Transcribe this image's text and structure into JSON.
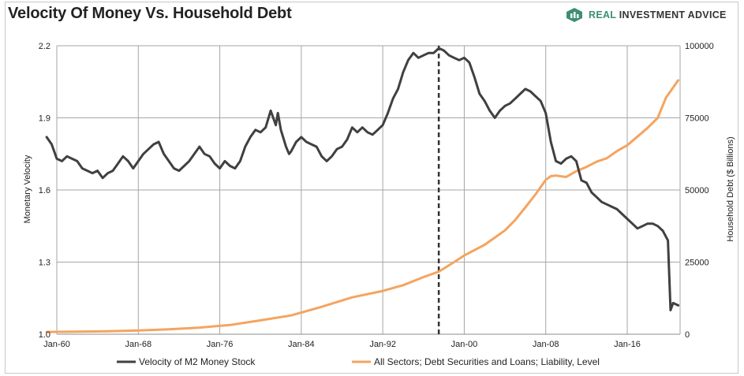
{
  "header": {
    "title": "Velocity Of Money Vs. Household Debt",
    "brand_part1": "REAL ",
    "brand_part2": "INVESTMENT ADVICE",
    "brand_icon": "brand-logo-icon",
    "brand_color": "#3d8f6f"
  },
  "chart_data": {
    "type": "line",
    "xlabel": "",
    "ylabel_left": "Monetary Velocity",
    "ylabel_right": "Household Debt ($ Billions)",
    "x_range": [
      1959.0,
      2019.3
    ],
    "x_ticks": [
      {
        "label": "Jan-60",
        "year": 1960
      },
      {
        "label": "Jan-68",
        "year": 1968
      },
      {
        "label": "Jan-76",
        "year": 1976
      },
      {
        "label": "Jan-84",
        "year": 1984
      },
      {
        "label": "Jan-92",
        "year": 1992
      },
      {
        "label": "Jan-00",
        "year": 2000
      },
      {
        "label": "Jan-08",
        "year": 2008
      },
      {
        "label": "Jan-16",
        "year": 2016
      }
    ],
    "ylim_left": [
      1.0,
      2.2
    ],
    "ylim_right": [
      0,
      100000
    ],
    "yticks_left": [
      "1.0",
      "1.3",
      "1.6",
      "1.9",
      "2.2"
    ],
    "yticks_right": [
      "0",
      "25000",
      "50000",
      "75000",
      "100000"
    ],
    "grid": true,
    "legend_position": "bottom",
    "vline_year": 1997.5,
    "series": [
      {
        "name": "Velocity of M2 Money Stock",
        "axis": "left",
        "color": "#404040",
        "points": [
          [
            1959.0,
            1.82
          ],
          [
            1959.5,
            1.79
          ],
          [
            1960.0,
            1.73
          ],
          [
            1960.5,
            1.72
          ],
          [
            1961.0,
            1.74
          ],
          [
            1961.5,
            1.73
          ],
          [
            1962.0,
            1.72
          ],
          [
            1962.5,
            1.69
          ],
          [
            1963.0,
            1.68
          ],
          [
            1963.5,
            1.67
          ],
          [
            1964.0,
            1.68
          ],
          [
            1964.5,
            1.65
          ],
          [
            1965.0,
            1.67
          ],
          [
            1965.5,
            1.68
          ],
          [
            1966.0,
            1.71
          ],
          [
            1966.5,
            1.74
          ],
          [
            1967.0,
            1.72
          ],
          [
            1967.5,
            1.69
          ],
          [
            1968.0,
            1.72
          ],
          [
            1968.5,
            1.75
          ],
          [
            1969.0,
            1.77
          ],
          [
            1969.5,
            1.79
          ],
          [
            1970.0,
            1.8
          ],
          [
            1970.5,
            1.75
          ],
          [
            1971.0,
            1.72
          ],
          [
            1971.5,
            1.69
          ],
          [
            1972.0,
            1.68
          ],
          [
            1972.5,
            1.7
          ],
          [
            1973.0,
            1.72
          ],
          [
            1973.5,
            1.75
          ],
          [
            1974.0,
            1.78
          ],
          [
            1974.5,
            1.75
          ],
          [
            1975.0,
            1.74
          ],
          [
            1975.5,
            1.71
          ],
          [
            1976.0,
            1.69
          ],
          [
            1976.5,
            1.72
          ],
          [
            1977.0,
            1.7
          ],
          [
            1977.5,
            1.69
          ],
          [
            1978.0,
            1.72
          ],
          [
            1978.5,
            1.78
          ],
          [
            1979.0,
            1.82
          ],
          [
            1979.5,
            1.85
          ],
          [
            1980.0,
            1.84
          ],
          [
            1980.5,
            1.86
          ],
          [
            1981.0,
            1.93
          ],
          [
            1981.5,
            1.87
          ],
          [
            1981.7,
            1.92
          ],
          [
            1982.0,
            1.85
          ],
          [
            1982.5,
            1.78
          ],
          [
            1982.8,
            1.75
          ],
          [
            1983.0,
            1.76
          ],
          [
            1983.5,
            1.8
          ],
          [
            1984.0,
            1.82
          ],
          [
            1984.5,
            1.8
          ],
          [
            1985.0,
            1.79
          ],
          [
            1985.5,
            1.78
          ],
          [
            1986.0,
            1.74
          ],
          [
            1986.5,
            1.72
          ],
          [
            1987.0,
            1.74
          ],
          [
            1987.5,
            1.77
          ],
          [
            1988.0,
            1.78
          ],
          [
            1988.5,
            1.81
          ],
          [
            1989.0,
            1.86
          ],
          [
            1989.5,
            1.84
          ],
          [
            1990.0,
            1.86
          ],
          [
            1990.5,
            1.84
          ],
          [
            1991.0,
            1.83
          ],
          [
            1991.5,
            1.85
          ],
          [
            1992.0,
            1.87
          ],
          [
            1992.5,
            1.92
          ],
          [
            1993.0,
            1.98
          ],
          [
            1993.5,
            2.02
          ],
          [
            1994.0,
            2.09
          ],
          [
            1994.5,
            2.14
          ],
          [
            1995.0,
            2.17
          ],
          [
            1995.5,
            2.15
          ],
          [
            1996.0,
            2.16
          ],
          [
            1996.5,
            2.17
          ],
          [
            1997.0,
            2.17
          ],
          [
            1997.5,
            2.19
          ],
          [
            1998.0,
            2.18
          ],
          [
            1998.5,
            2.16
          ],
          [
            1999.0,
            2.15
          ],
          [
            1999.5,
            2.14
          ],
          [
            2000.0,
            2.15
          ],
          [
            2000.5,
            2.13
          ],
          [
            2001.0,
            2.07
          ],
          [
            2001.5,
            2.0
          ],
          [
            2002.0,
            1.97
          ],
          [
            2002.5,
            1.93
          ],
          [
            2003.0,
            1.9
          ],
          [
            2003.5,
            1.93
          ],
          [
            2004.0,
            1.95
          ],
          [
            2004.5,
            1.96
          ],
          [
            2005.0,
            1.98
          ],
          [
            2005.5,
            2.0
          ],
          [
            2006.0,
            2.02
          ],
          [
            2006.5,
            2.01
          ],
          [
            2007.0,
            1.99
          ],
          [
            2007.5,
            1.97
          ],
          [
            2008.0,
            1.92
          ],
          [
            2008.5,
            1.8
          ],
          [
            2009.0,
            1.72
          ],
          [
            2009.5,
            1.71
          ],
          [
            2010.0,
            1.73
          ],
          [
            2010.5,
            1.74
          ],
          [
            2011.0,
            1.72
          ],
          [
            2011.5,
            1.64
          ],
          [
            2012.0,
            1.63
          ],
          [
            2012.5,
            1.59
          ],
          [
            2013.0,
            1.57
          ],
          [
            2013.5,
            1.55
          ],
          [
            2014.0,
            1.54
          ],
          [
            2014.5,
            1.53
          ],
          [
            2015.0,
            1.52
          ],
          [
            2015.5,
            1.5
          ],
          [
            2016.0,
            1.48
          ],
          [
            2016.5,
            1.46
          ],
          [
            2017.0,
            1.44
          ],
          [
            2017.5,
            1.45
          ],
          [
            2018.0,
            1.46
          ],
          [
            2018.5,
            1.46
          ],
          [
            2019.0,
            1.45
          ],
          [
            2019.5,
            1.43
          ],
          [
            2020.0,
            1.39
          ],
          [
            2020.25,
            1.1
          ],
          [
            2020.5,
            1.13
          ],
          [
            2021.0,
            1.12
          ]
        ]
      },
      {
        "name": "All Sectors; Debt Securities and Loans; Liability, Level",
        "axis": "right",
        "color": "#f4a460",
        "points": [
          [
            1959.0,
            800
          ],
          [
            1962,
            900
          ],
          [
            1965,
            1000
          ],
          [
            1968,
            1300
          ],
          [
            1971,
            1700
          ],
          [
            1974,
            2300
          ],
          [
            1977,
            3200
          ],
          [
            1980,
            4800
          ],
          [
            1983,
            6500
          ],
          [
            1986,
            9500
          ],
          [
            1989,
            12800
          ],
          [
            1992,
            15000
          ],
          [
            1994,
            17000
          ],
          [
            1996,
            19800
          ],
          [
            1997.5,
            21700
          ],
          [
            1999,
            25000
          ],
          [
            2000,
            27300
          ],
          [
            2002,
            31000
          ],
          [
            2004,
            36000
          ],
          [
            2005,
            39600
          ],
          [
            2006,
            44000
          ],
          [
            2007,
            48500
          ],
          [
            2008,
            53500
          ],
          [
            2008.5,
            54800
          ],
          [
            2009,
            55000
          ],
          [
            2010,
            54500
          ],
          [
            2011,
            56500
          ],
          [
            2012,
            58000
          ],
          [
            2013,
            59800
          ],
          [
            2014,
            61000
          ],
          [
            2015,
            63500
          ],
          [
            2016,
            65500
          ],
          [
            2017,
            68500
          ],
          [
            2018,
            71500
          ],
          [
            2019,
            75000
          ],
          [
            2019.8,
            82000
          ],
          [
            2020.5,
            85500
          ],
          [
            2021,
            88000
          ]
        ]
      }
    ]
  }
}
